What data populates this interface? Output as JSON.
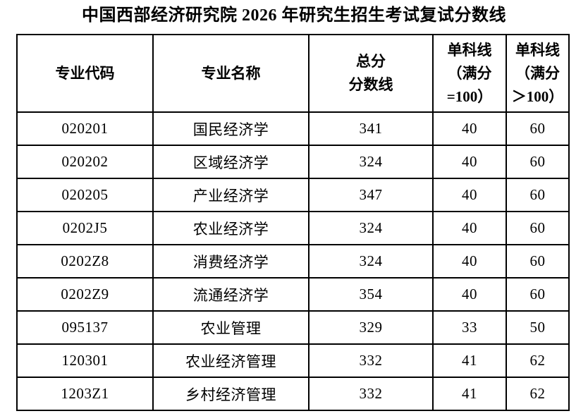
{
  "title": "中国西部经济研究院 2026 年研究生招生考试复试分数线",
  "colors": {
    "background": "#ffffff",
    "text": "#000000",
    "border": "#000000"
  },
  "table": {
    "headers": [
      "专业代码",
      "专业名称",
      "总分\n分数线",
      "单科线\n（满分\n=100）",
      "单科线\n（满分\n＞100）"
    ],
    "rows": [
      [
        "020201",
        "国民经济学",
        "341",
        "40",
        "60"
      ],
      [
        "020202",
        "区域经济学",
        "324",
        "40",
        "60"
      ],
      [
        "020205",
        "产业经济学",
        "347",
        "40",
        "60"
      ],
      [
        "0202J5",
        "农业经济学",
        "324",
        "40",
        "60"
      ],
      [
        "0202Z8",
        "消费经济学",
        "324",
        "40",
        "60"
      ],
      [
        "0202Z9",
        "流通经济学",
        "354",
        "40",
        "60"
      ],
      [
        "095137",
        "农业管理",
        "329",
        "33",
        "50"
      ],
      [
        "120301",
        "农业经济管理",
        "332",
        "41",
        "62"
      ],
      [
        "1203Z1",
        "乡村经济管理",
        "332",
        "41",
        "62"
      ]
    ]
  }
}
